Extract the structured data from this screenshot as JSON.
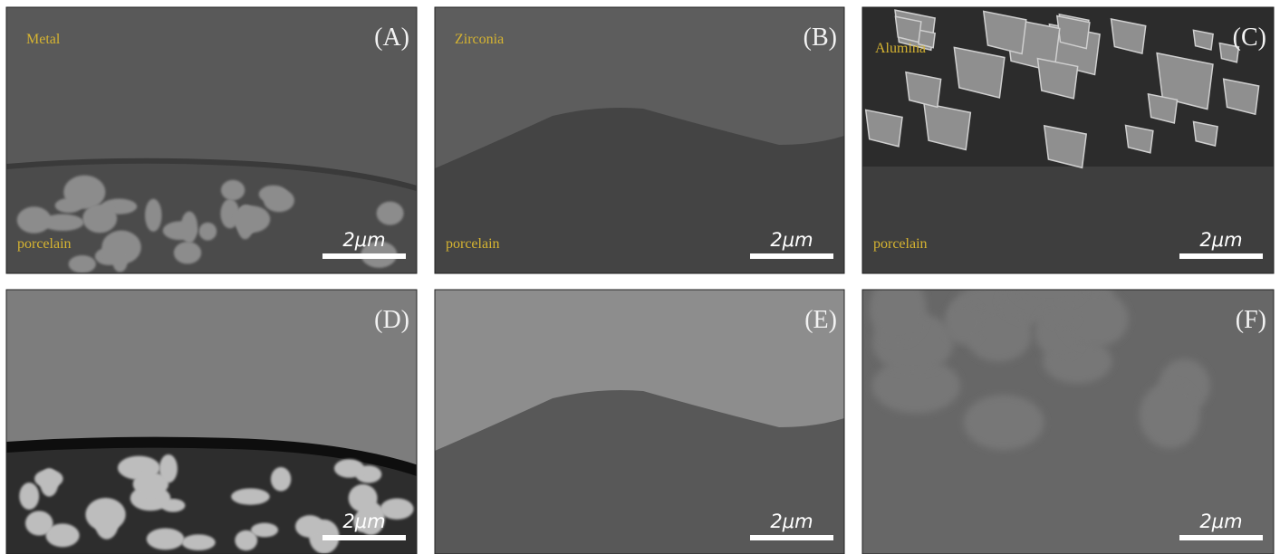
{
  "panels": [
    {
      "label": "(A)",
      "material": "Metal",
      "bottom": "porcelain",
      "scale": "2μm"
    },
    {
      "label": "(B)",
      "material": "Zirconia",
      "bottom": "porcelain",
      "scale": "2μm"
    },
    {
      "label": "(C)",
      "material": "Alumina",
      "bottom": "porcelain",
      "scale": "2μm"
    },
    {
      "label": "(D)",
      "scale": "2μm"
    },
    {
      "label": "(E)",
      "scale": "2μm"
    },
    {
      "label": "(F)",
      "scale": "2μm"
    }
  ]
}
